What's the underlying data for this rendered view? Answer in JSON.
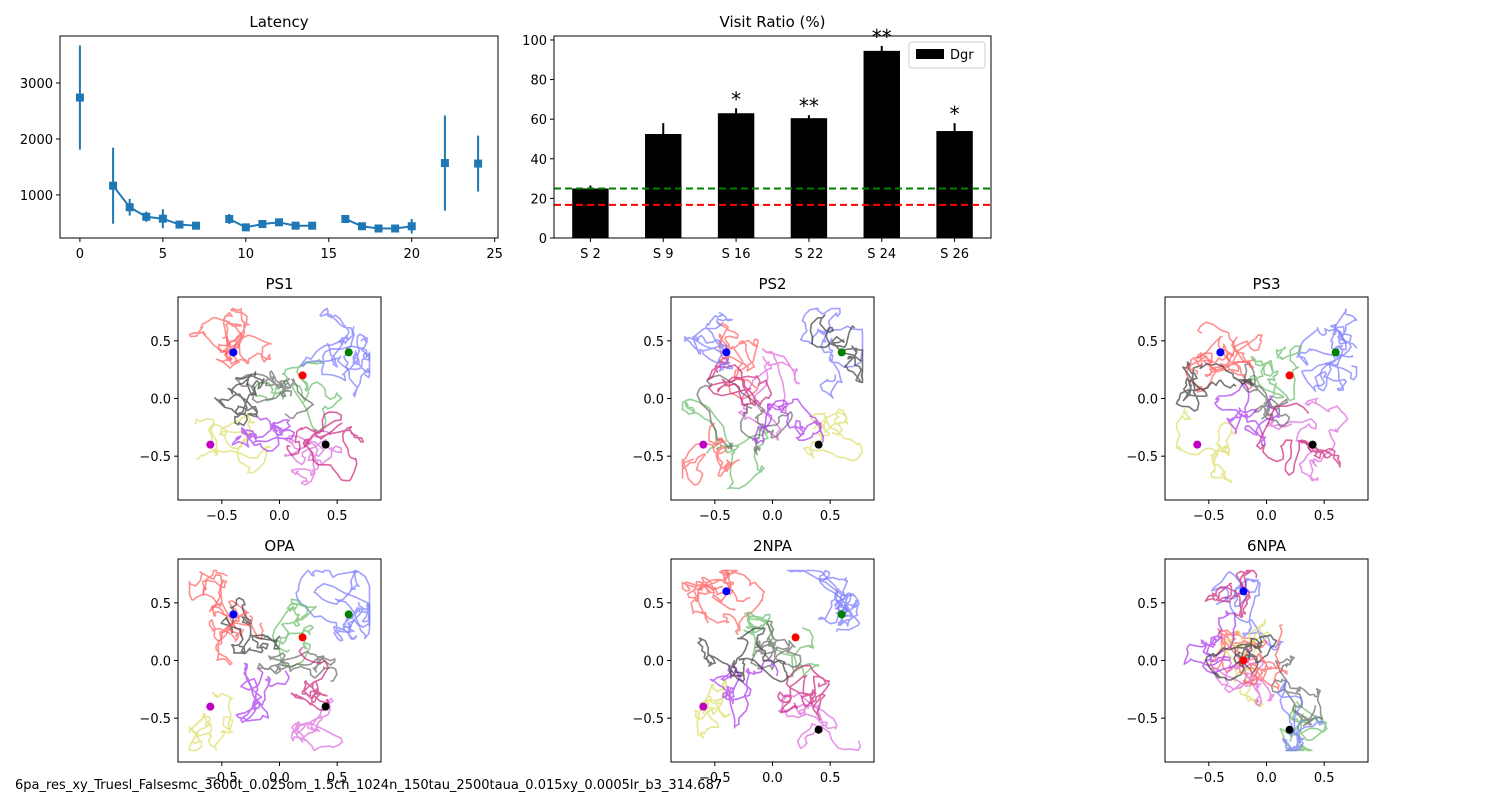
{
  "chart_data": [
    {
      "type": "line",
      "title": "Latency",
      "xlabel": "",
      "ylabel": "",
      "xlim": [
        -1.2,
        25.2
      ],
      "ylim": [
        230,
        3840
      ],
      "xticks": [
        0,
        5,
        10,
        15,
        20,
        25
      ],
      "yticks": [
        1000,
        2000,
        3000
      ],
      "color": "#1f77b4",
      "segments": [
        [
          {
            "x": 0,
            "y": 2740,
            "err": 930
          }
        ],
        [
          {
            "x": 2,
            "y": 1165,
            "err": 680
          },
          {
            "x": 3,
            "y": 780,
            "err": 150
          },
          {
            "x": 4,
            "y": 610,
            "err": 90
          },
          {
            "x": 5,
            "y": 575,
            "err": 170
          },
          {
            "x": 6,
            "y": 470,
            "err": 40
          },
          {
            "x": 7,
            "y": 450,
            "err": 40
          }
        ],
        [
          {
            "x": 9,
            "y": 570,
            "err": 90
          },
          {
            "x": 10,
            "y": 420,
            "err": 50
          },
          {
            "x": 11,
            "y": 480,
            "err": 40
          },
          {
            "x": 12,
            "y": 510,
            "err": 40
          },
          {
            "x": 13,
            "y": 450,
            "err": 40
          },
          {
            "x": 14,
            "y": 450,
            "err": 40
          }
        ],
        [
          {
            "x": 16,
            "y": 570,
            "err": 40
          },
          {
            "x": 17,
            "y": 440,
            "err": 50
          },
          {
            "x": 18,
            "y": 400,
            "err": 40
          },
          {
            "x": 19,
            "y": 400,
            "err": 40
          },
          {
            "x": 20,
            "y": 440,
            "err": 130
          }
        ],
        [
          {
            "x": 22,
            "y": 1570,
            "err": 850
          }
        ],
        [
          {
            "x": 24,
            "y": 1560,
            "err": 500
          }
        ]
      ]
    },
    {
      "type": "bar",
      "title": "Visit Ratio (%)",
      "categories": [
        "S 2",
        "S 9",
        "S 16",
        "S 22",
        "S 24",
        "S 26"
      ],
      "series": [
        {
          "name": "Dgr",
          "values": [
            25,
            52.5,
            63,
            60.5,
            94.5,
            54
          ],
          "errors": [
            1.5,
            5.5,
            2.5,
            1.5,
            2.5,
            4
          ],
          "color": "#000000"
        }
      ],
      "annotations": [
        "",
        "",
        "*",
        "**",
        "**",
        "*"
      ],
      "reference_lines": [
        {
          "y": 25,
          "color": "#008000"
        },
        {
          "y": 16.7,
          "color": "#ff0000"
        }
      ],
      "ylim": [
        0,
        102
      ],
      "yticks": [
        0,
        20,
        40,
        60,
        80,
        100
      ],
      "legend": "top-right"
    },
    {
      "type": "scatter",
      "title": "PS1",
      "markers": [
        {
          "x": 0.6,
          "y": 0.4,
          "color": "#008000"
        },
        {
          "x": -0.4,
          "y": 0.4,
          "color": "#0000ff"
        },
        {
          "x": 0.2,
          "y": 0.2,
          "color": "#ff0000"
        },
        {
          "x": -0.6,
          "y": -0.4,
          "color": "#c000c0"
        },
        {
          "x": 0.4,
          "y": -0.4,
          "color": "#000000"
        }
      ]
    },
    {
      "type": "scatter",
      "title": "PS2",
      "markers": [
        {
          "x": 0.6,
          "y": 0.4,
          "color": "#008000"
        },
        {
          "x": -0.4,
          "y": 0.4,
          "color": "#0000ff"
        },
        {
          "x": -0.6,
          "y": -0.4,
          "color": "#c000c0"
        },
        {
          "x": 0.4,
          "y": -0.4,
          "color": "#000000"
        }
      ]
    },
    {
      "type": "scatter",
      "title": "PS3",
      "markers": [
        {
          "x": 0.6,
          "y": 0.4,
          "color": "#008000"
        },
        {
          "x": -0.4,
          "y": 0.4,
          "color": "#0000ff"
        },
        {
          "x": 0.2,
          "y": 0.2,
          "color": "#ff0000"
        },
        {
          "x": -0.6,
          "y": -0.4,
          "color": "#c000c0"
        },
        {
          "x": 0.4,
          "y": -0.4,
          "color": "#000000"
        }
      ]
    },
    {
      "type": "scatter",
      "title": "OPA",
      "markers": [
        {
          "x": 0.6,
          "y": 0.4,
          "color": "#008000"
        },
        {
          "x": -0.4,
          "y": 0.4,
          "color": "#0000ff"
        },
        {
          "x": 0.2,
          "y": 0.2,
          "color": "#ff0000"
        },
        {
          "x": -0.6,
          "y": -0.4,
          "color": "#c000c0"
        },
        {
          "x": 0.4,
          "y": -0.4,
          "color": "#000000"
        }
      ]
    },
    {
      "type": "scatter",
      "title": "2NPA",
      "markers": [
        {
          "x": 0.6,
          "y": 0.4,
          "color": "#008000"
        },
        {
          "x": -0.4,
          "y": 0.6,
          "color": "#0000ff"
        },
        {
          "x": 0.2,
          "y": 0.2,
          "color": "#ff0000"
        },
        {
          "x": -0.6,
          "y": -0.4,
          "color": "#c000c0"
        },
        {
          "x": 0.4,
          "y": -0.6,
          "color": "#000000"
        }
      ]
    },
    {
      "type": "scatter",
      "title": "6NPA",
      "markers": [
        {
          "x": -0.2,
          "y": 0.6,
          "color": "#0000ff"
        },
        {
          "x": -0.2,
          "y": 0.0,
          "color": "#ff0000"
        },
        {
          "x": 0.2,
          "y": -0.6,
          "color": "#000000"
        }
      ]
    }
  ],
  "trajectory_colors": [
    "#7777ff",
    "#ff6060",
    "#66bb66",
    "#dddd66",
    "#dd66dd",
    "#666666",
    "#aa33ee",
    "#cc2277",
    "#3a3a3a"
  ],
  "map_axes": {
    "lim": [
      -0.88,
      0.88
    ],
    "ticks": [
      -0.5,
      0.0,
      0.5
    ]
  },
  "footer": "6pa_res_xy_Truesl_Falsesmc_3600t_0.025om_1.5ch_1024n_150tau_2500taua_0.015xy_0.0005lr_b3_314.687"
}
